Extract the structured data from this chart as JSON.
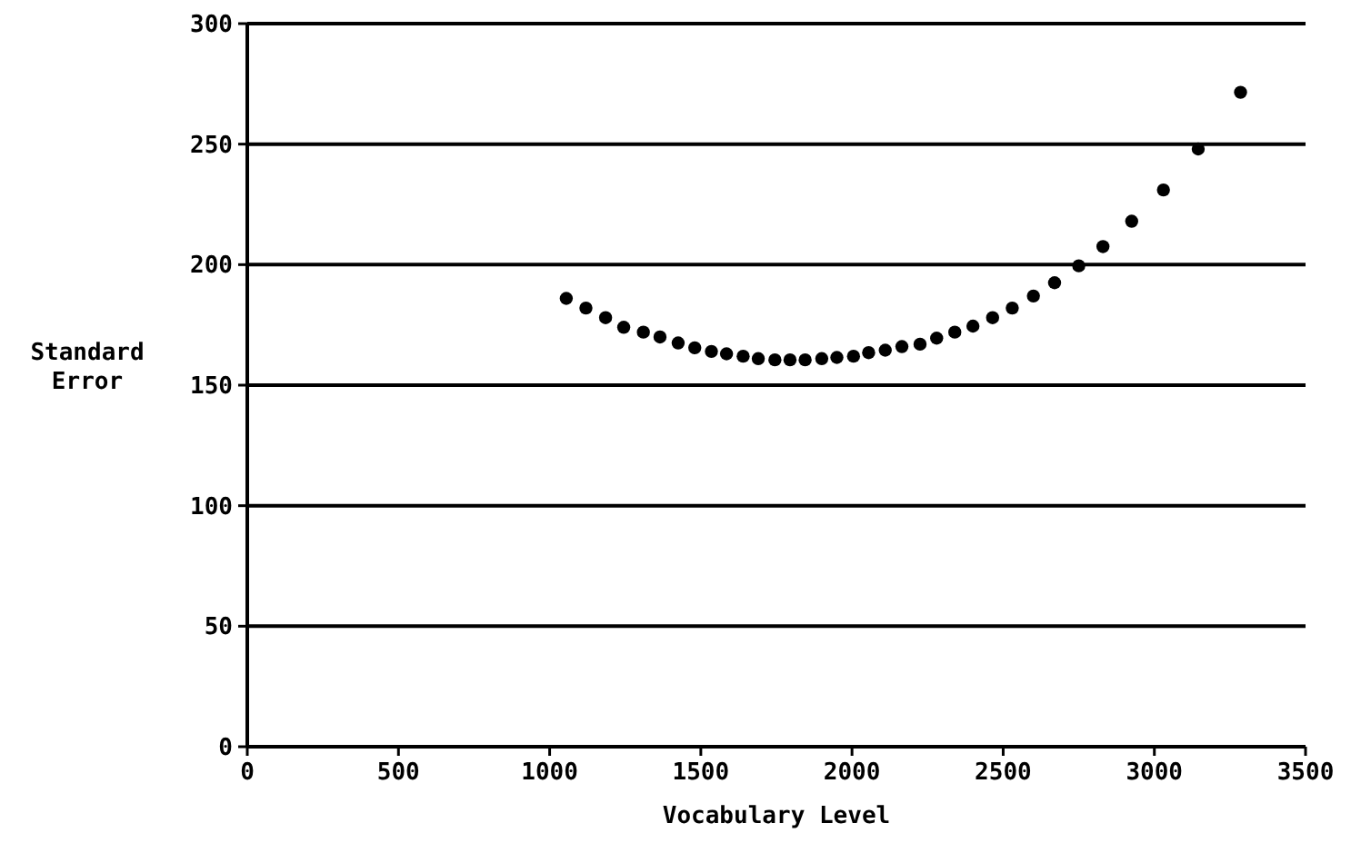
{
  "chart_data": {
    "type": "scatter",
    "xlabel": "Vocabulary Level",
    "ylabel": "Standard Error",
    "marker": "circle",
    "grid": "y",
    "x": [
      1055,
      1120,
      1185,
      1245,
      1310,
      1365,
      1425,
      1480,
      1535,
      1585,
      1640,
      1690,
      1745,
      1795,
      1845,
      1900,
      1950,
      2005,
      2055,
      2110,
      2165,
      2225,
      2280,
      2340,
      2400,
      2465,
      2530,
      2600,
      2670,
      2750,
      2830,
      2925,
      3030,
      3145,
      3285
    ],
    "series": [
      {
        "color": "#000000",
        "values": [
          186,
          182,
          178,
          174,
          172,
          170,
          167.5,
          165.5,
          164,
          163,
          162,
          161,
          160.5,
          160.5,
          160.5,
          161,
          161.5,
          162,
          163.5,
          164.5,
          166,
          167,
          169.5,
          172,
          174.5,
          178,
          182,
          187,
          192.5,
          199.5,
          207.5,
          218,
          231,
          248,
          271.5
        ]
      }
    ],
    "xlim": [
      0,
      3500
    ],
    "xticks": [
      0,
      500,
      1000,
      1500,
      2000,
      2500,
      3000,
      3500
    ],
    "ylim": [
      0,
      300
    ],
    "yticks": [
      0,
      50,
      100,
      150,
      200,
      250,
      300
    ]
  }
}
